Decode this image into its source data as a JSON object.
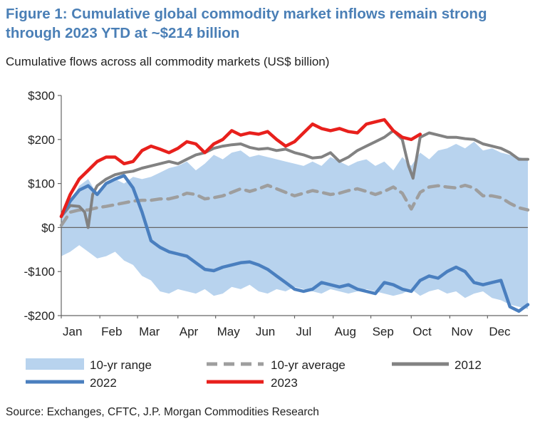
{
  "title": "Figure 1: Cumulative global commodity market inflows remain strong through 2023 YTD at ~$214 billion",
  "subtitle": "Cumulative flows across all commodity markets (US$ billion)",
  "source": "Source: Exchanges, CFTC, J.P. Morgan Commodities Research",
  "chart_data": {
    "type": "line",
    "title": "Figure 1: Cumulative global commodity market inflows remain strong through 2023 YTD at ~$214 billion",
    "ylabel": "Cumulative flows across all commodity markets (US$ billion)",
    "xlabel": "",
    "ylim": [
      -200,
      300
    ],
    "xlim": [
      0,
      52
    ],
    "y_ticks": [
      300,
      200,
      100,
      0,
      -100,
      -200
    ],
    "y_tick_labels": [
      "$300",
      "$200",
      "$100",
      "$0",
      "-$100",
      "-$200"
    ],
    "x_ticks": [
      0,
      4.3,
      8.5,
      13,
      17.2,
      21.5,
      26,
      30.3,
      34.5,
      39,
      43.3,
      47.5
    ],
    "x_tick_labels": [
      "Jan",
      "Feb",
      "Mar",
      "Apr",
      "May",
      "Jun",
      "Jul",
      "Aug",
      "Sep",
      "Oct",
      "Nov",
      "Dec"
    ],
    "colors": {
      "range_fill": "#b8d3ee",
      "avg": "#9e9e9e",
      "y2012": "#828282",
      "y2022": "#4a7fbf",
      "y2023": "#e8201c",
      "title": "#4a7fb6"
    },
    "range": {
      "name": "10-yr range",
      "x": [
        0,
        1,
        2,
        3,
        4,
        5,
        6,
        7,
        8,
        9,
        10,
        11,
        12,
        13,
        14,
        15,
        16,
        17,
        18,
        19,
        20,
        21,
        22,
        23,
        24,
        25,
        26,
        27,
        28,
        29,
        30,
        31,
        32,
        33,
        34,
        35,
        36,
        37,
        38,
        39,
        40,
        41,
        42,
        43,
        44,
        45,
        46,
        47,
        48,
        49,
        50,
        51,
        52
      ],
      "upper": [
        25,
        55,
        95,
        110,
        75,
        95,
        110,
        100,
        115,
        110,
        115,
        125,
        135,
        140,
        150,
        130,
        145,
        165,
        155,
        170,
        175,
        160,
        165,
        160,
        155,
        150,
        145,
        140,
        150,
        140,
        160,
        150,
        140,
        150,
        155,
        140,
        150,
        130,
        160,
        140,
        170,
        155,
        175,
        180,
        190,
        180,
        195,
        175,
        180,
        170,
        165,
        160,
        155
      ],
      "lower": [
        -65,
        -55,
        -40,
        -55,
        -70,
        -65,
        -55,
        -75,
        -85,
        -110,
        -120,
        -145,
        -150,
        -140,
        -145,
        -150,
        -140,
        -155,
        -150,
        -135,
        -140,
        -130,
        -145,
        -150,
        -140,
        -145,
        -135,
        -140,
        -145,
        -150,
        -140,
        -145,
        -150,
        -145,
        -140,
        -145,
        -150,
        -155,
        -150,
        -140,
        -155,
        -145,
        -140,
        -150,
        -145,
        -160,
        -150,
        -145,
        -160,
        -165,
        -175,
        -180,
        -185
      ]
    },
    "series": [
      {
        "name": "10-yr average",
        "x": [
          0,
          1,
          2,
          3,
          4,
          5,
          6,
          7,
          8,
          9,
          10,
          11,
          12,
          13,
          14,
          15,
          16,
          17,
          18,
          19,
          20,
          21,
          22,
          23,
          24,
          25,
          26,
          27,
          28,
          29,
          30,
          31,
          32,
          33,
          34,
          35,
          36,
          37,
          38,
          39,
          40,
          41,
          42,
          43,
          44,
          45,
          46,
          47,
          48,
          49,
          50,
          51,
          52
        ],
        "values": [
          5,
          35,
          40,
          40,
          45,
          48,
          52,
          56,
          60,
          62,
          62,
          65,
          65,
          70,
          78,
          75,
          65,
          68,
          72,
          80,
          88,
          82,
          88,
          96,
          88,
          80,
          72,
          78,
          84,
          80,
          75,
          78,
          84,
          88,
          82,
          75,
          82,
          92,
          78,
          42,
          80,
          92,
          95,
          92,
          90,
          96,
          90,
          72,
          72,
          68,
          55,
          45,
          40
        ]
      },
      {
        "name": "2012",
        "x": [
          0,
          1,
          2,
          2.6,
          3,
          3.5,
          4,
          5,
          6,
          7,
          8,
          9,
          10,
          11,
          12,
          13,
          14,
          15,
          16,
          17,
          18,
          19,
          20,
          21,
          22,
          23,
          24,
          25,
          26,
          27,
          28,
          29,
          30,
          31,
          32,
          33,
          34,
          35,
          36,
          37,
          38,
          38.7,
          39.2,
          40,
          41,
          42,
          43,
          44,
          45,
          46,
          47,
          48,
          49,
          50,
          51,
          52
        ],
        "values": [
          25,
          50,
          48,
          35,
          0,
          75,
          95,
          110,
          120,
          125,
          128,
          135,
          140,
          145,
          150,
          145,
          155,
          165,
          170,
          180,
          185,
          188,
          190,
          182,
          178,
          180,
          175,
          178,
          170,
          165,
          158,
          160,
          170,
          150,
          160,
          175,
          185,
          195,
          205,
          220,
          200,
          140,
          112,
          205,
          215,
          210,
          205,
          205,
          202,
          200,
          190,
          185,
          180,
          170,
          155,
          155
        ]
      },
      {
        "name": "2022",
        "x": [
          0,
          1,
          2,
          3,
          4,
          5,
          6,
          7,
          8,
          9,
          10,
          11,
          12,
          13,
          14,
          15,
          16,
          17,
          18,
          19,
          20,
          21,
          22,
          23,
          24,
          25,
          26,
          27,
          28,
          29,
          30,
          31,
          32,
          33,
          34,
          35,
          36,
          37,
          38,
          39,
          40,
          41,
          42,
          43,
          44,
          45,
          46,
          47,
          48,
          49,
          50,
          51,
          52
        ],
        "values": [
          25,
          60,
          85,
          95,
          75,
          100,
          110,
          118,
          90,
          35,
          -30,
          -45,
          -55,
          -60,
          -65,
          -80,
          -95,
          -98,
          -90,
          -85,
          -80,
          -78,
          -85,
          -95,
          -110,
          -125,
          -140,
          -145,
          -140,
          -125,
          -130,
          -135,
          -130,
          -140,
          -145,
          -150,
          -125,
          -130,
          -140,
          -145,
          -120,
          -110,
          -115,
          -100,
          -90,
          -100,
          -125,
          -130,
          -125,
          -120,
          -180,
          -190,
          -175
        ]
      },
      {
        "name": "2023",
        "x": [
          0,
          1,
          2,
          3,
          4,
          5,
          6,
          7,
          8,
          9,
          10,
          11,
          12,
          13,
          14,
          15,
          16,
          17,
          18,
          19,
          20,
          21,
          22,
          23,
          24,
          25,
          26,
          27,
          28,
          29,
          30,
          31,
          32,
          33,
          34,
          35,
          36,
          37,
          38,
          39,
          40
        ],
        "values": [
          25,
          75,
          110,
          130,
          150,
          160,
          160,
          145,
          150,
          175,
          185,
          178,
          170,
          180,
          195,
          190,
          170,
          190,
          200,
          220,
          210,
          215,
          212,
          218,
          200,
          185,
          195,
          215,
          235,
          225,
          220,
          225,
          218,
          215,
          235,
          240,
          245,
          220,
          205,
          200,
          212
        ]
      }
    ],
    "legend": [
      "10-yr range",
      "10-yr average",
      "2012",
      "2022",
      "2023"
    ],
    "legend_position": "bottom"
  }
}
